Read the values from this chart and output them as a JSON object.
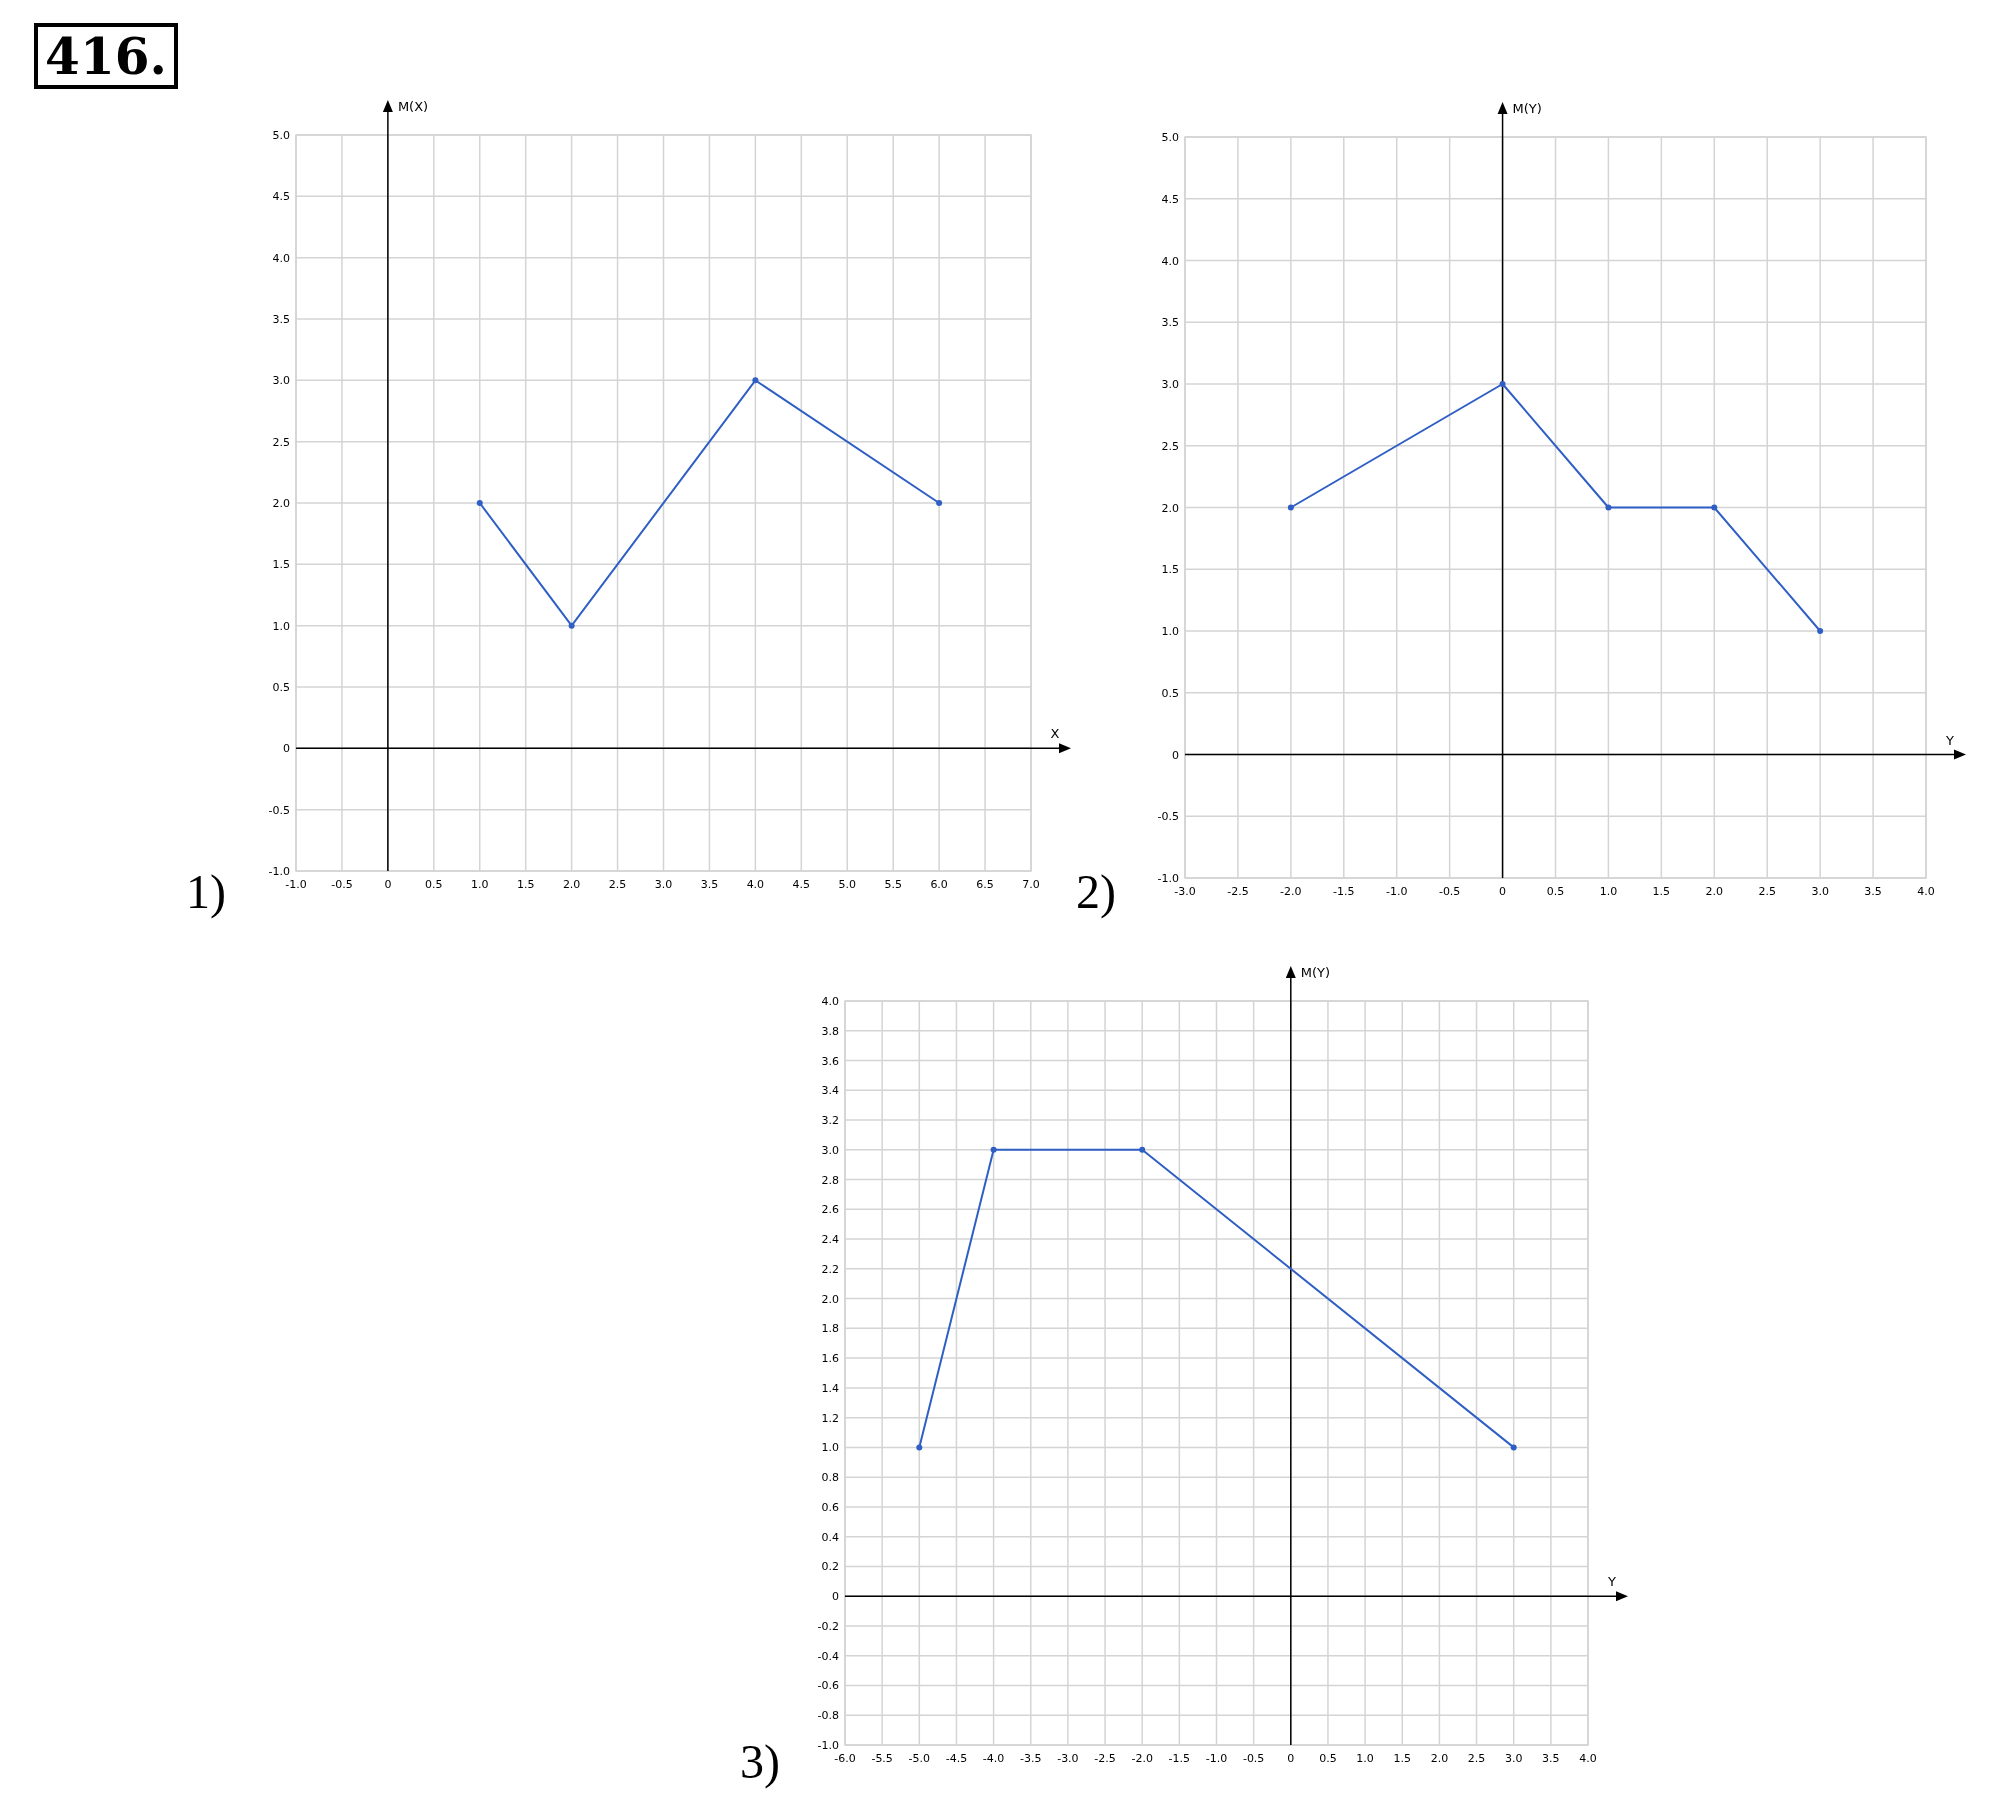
{
  "chart_data": [
    {
      "type": "line",
      "title": "1)",
      "annotations": [
        "416."
      ],
      "xlabel": "X",
      "ylabel": "M(X)",
      "x": [
        1,
        2,
        4,
        6
      ],
      "series": [
        {
          "color": "#2f5fc4",
          "values": [
            2,
            1,
            3,
            2
          ]
        }
      ],
      "marker": "circle",
      "grid": true,
      "xlim": [
        -1,
        7
      ],
      "ylim": [
        -1,
        5
      ],
      "xticks": [
        {
          "value": -1,
          "label": "-1.0"
        },
        -0.5,
        0,
        0.5,
        {
          "value": 1,
          "label": "1.0"
        },
        1.5,
        {
          "value": 2,
          "label": "2.0"
        },
        2.5,
        {
          "value": 3,
          "label": "3.0"
        },
        3.5,
        {
          "value": 4,
          "label": "4.0"
        },
        4.5,
        {
          "value": 5,
          "label": "5.0"
        },
        5.5,
        {
          "value": 6,
          "label": "6.0"
        },
        6.5,
        {
          "value": 7,
          "label": "7.0"
        }
      ],
      "yticks": [
        {
          "value": -1,
          "label": "-1.0"
        },
        -0.5,
        0,
        0.5,
        {
          "value": 1,
          "label": "1.0"
        },
        1.5,
        {
          "value": 2,
          "label": "2.0"
        },
        2.5,
        {
          "value": 3,
          "label": "3.0"
        },
        3.5,
        {
          "value": 4,
          "label": "4.0"
        },
        4.5,
        {
          "value": 5,
          "label": "5.0"
        }
      ]
    },
    {
      "type": "line",
      "title": "2)",
      "xlabel": "Y",
      "ylabel": "M(Y)",
      "x": [
        -2,
        0,
        1,
        2,
        3
      ],
      "series": [
        {
          "color": "#2f5fc4",
          "values": [
            2,
            3,
            2,
            2,
            1
          ]
        }
      ],
      "marker": "circle",
      "grid": true,
      "xlim": [
        -3,
        4
      ],
      "ylim": [
        -1,
        5
      ],
      "xticks": [
        {
          "value": -3,
          "label": "-3.0"
        },
        -2.5,
        {
          "value": -2,
          "label": "-2.0"
        },
        -1.5,
        {
          "value": -1,
          "label": "-1.0"
        },
        -0.5,
        0,
        0.5,
        {
          "value": 1,
          "label": "1.0"
        },
        1.5,
        {
          "value": 2,
          "label": "2.0"
        },
        2.5,
        {
          "value": 3,
          "label": "3.0"
        },
        3.5,
        {
          "value": 4,
          "label": "4.0"
        }
      ],
      "yticks": [
        {
          "value": -1,
          "label": "-1.0"
        },
        -0.5,
        0,
        0.5,
        {
          "value": 1,
          "label": "1.0"
        },
        1.5,
        {
          "value": 2,
          "label": "2.0"
        },
        2.5,
        {
          "value": 3,
          "label": "3.0"
        },
        3.5,
        {
          "value": 4,
          "label": "4.0"
        },
        4.5,
        {
          "value": 5,
          "label": "5.0"
        }
      ]
    },
    {
      "type": "line",
      "title": "3)",
      "xlabel": "Y",
      "ylabel": "M(Y)",
      "x": [
        -5,
        -4,
        -2,
        3
      ],
      "series": [
        {
          "color": "#2f5fc4",
          "values": [
            1,
            3,
            3,
            1
          ]
        }
      ],
      "marker": "circle",
      "grid": true,
      "xlim": [
        -6,
        4
      ],
      "ylim": [
        -1,
        4
      ],
      "xticks": [
        {
          "value": -6,
          "label": "-6.0"
        },
        -5.5,
        {
          "value": -5,
          "label": "-5.0"
        },
        -4.5,
        {
          "value": -4,
          "label": "-4.0"
        },
        -3.5,
        {
          "value": -3,
          "label": "-3.0"
        },
        -2.5,
        {
          "value": -2,
          "label": "-2.0"
        },
        -1.5,
        {
          "value": -1,
          "label": "-1.0"
        },
        -0.5,
        0,
        0.5,
        {
          "value": 1,
          "label": "1.0"
        },
        1.5,
        {
          "value": 2,
          "label": "2.0"
        },
        2.5,
        {
          "value": 3,
          "label": "3.0"
        },
        3.5,
        {
          "value": 4,
          "label": "4.0"
        }
      ],
      "yticks": [
        {
          "value": -1,
          "label": "-1.0"
        },
        -0.8,
        -0.6,
        -0.4,
        -0.2,
        0,
        0.2,
        0.4,
        0.6,
        0.8,
        {
          "value": 1,
          "label": "1.0"
        },
        1.2,
        1.4,
        1.6,
        1.8,
        {
          "value": 2,
          "label": "2.0"
        },
        2.2,
        2.4,
        2.6,
        2.8,
        {
          "value": 3,
          "label": "3.0"
        },
        3.2,
        3.4,
        3.6,
        3.8,
        {
          "value": 4,
          "label": "4.0"
        }
      ]
    }
  ]
}
